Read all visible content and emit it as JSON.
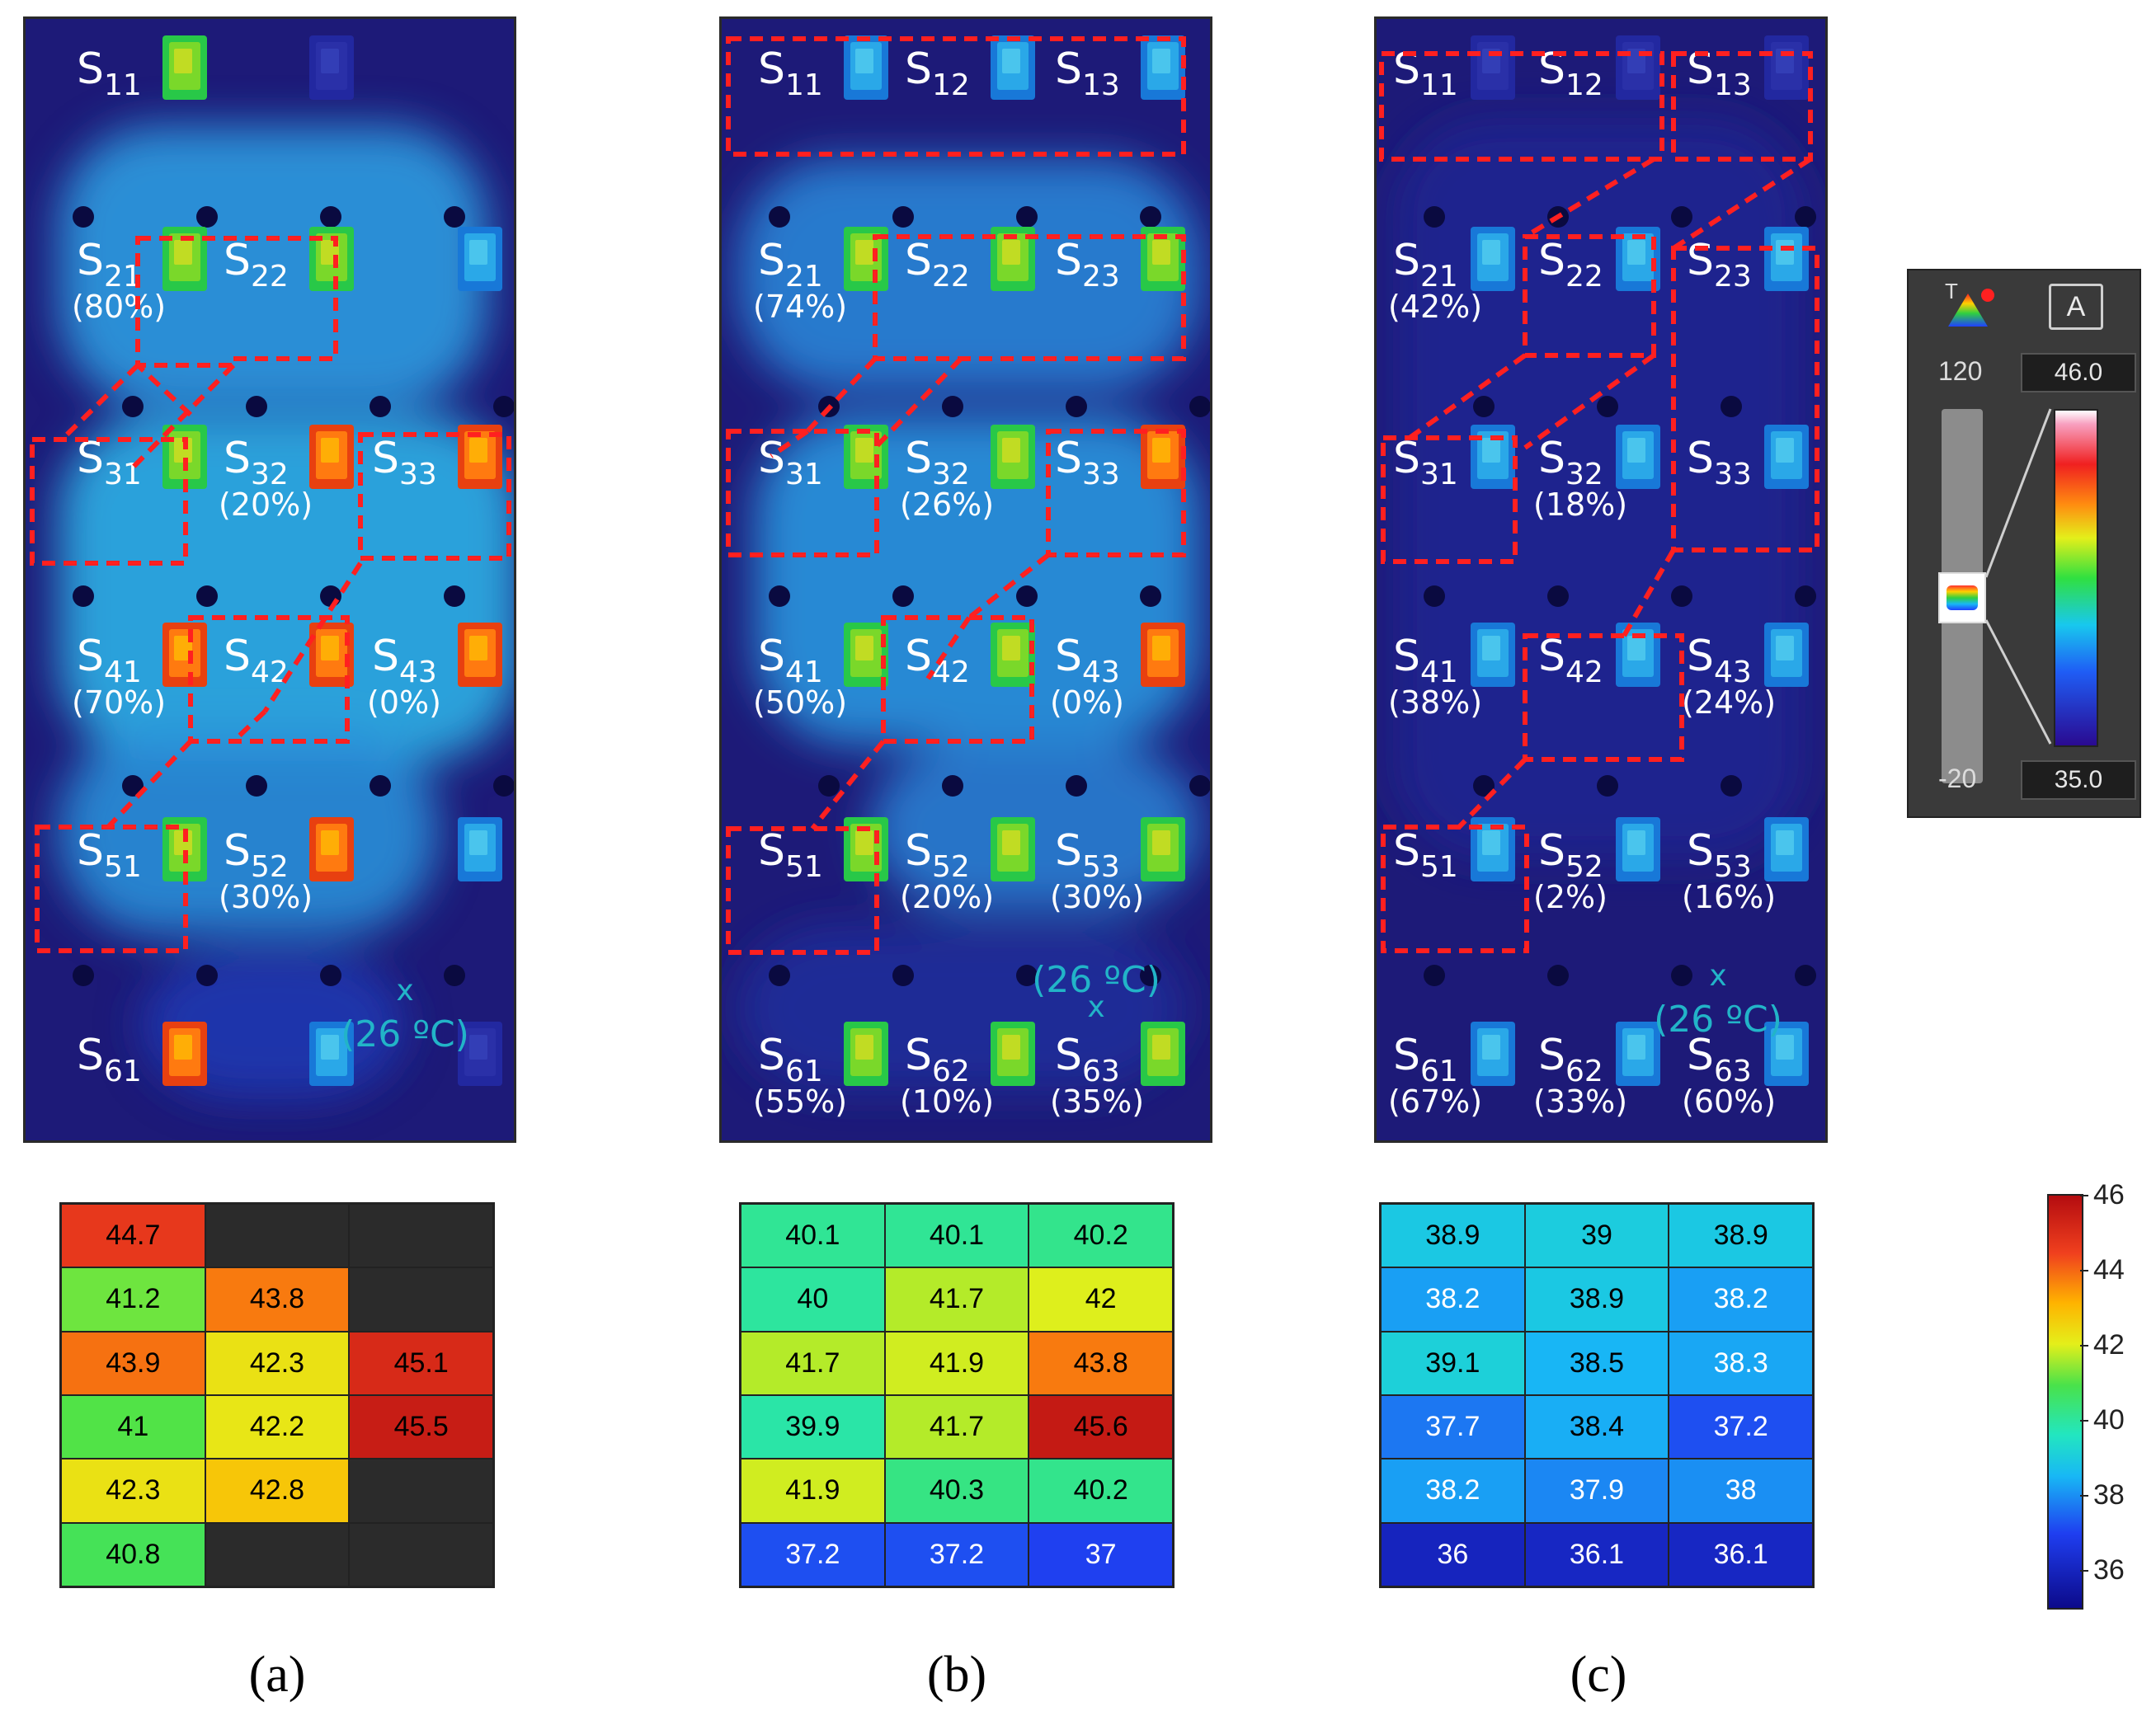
{
  "panels": [
    {
      "id": "a",
      "label": "(a)",
      "ambient_marker": "x",
      "ambient_text": "(26 ºC)",
      "sensors": [
        {
          "name": "S",
          "sub": "61",
          "pct": "",
          "hot": "hot"
        },
        {
          "name": "",
          "sub": "",
          "pct": "",
          "hot": "cool"
        },
        {
          "name": "",
          "sub": "",
          "pct": "",
          "hot": "dark"
        },
        {
          "name": "S",
          "sub": "51",
          "pct": "",
          "hot": "warm"
        },
        {
          "name": "S",
          "sub": "52",
          "pct": "(30%)",
          "hot": "hot"
        },
        {
          "name": "",
          "sub": "",
          "pct": "",
          "hot": "cool"
        },
        {
          "name": "S",
          "sub": "41",
          "pct": "(70%)",
          "hot": "hot"
        },
        {
          "name": "S",
          "sub": "42",
          "pct": "",
          "hot": "hot"
        },
        {
          "name": "S",
          "sub": "43",
          "pct": "(0%)",
          "hot": "hot"
        },
        {
          "name": "S",
          "sub": "31",
          "pct": "",
          "hot": "warm"
        },
        {
          "name": "S",
          "sub": "32",
          "pct": "(20%)",
          "hot": "hot"
        },
        {
          "name": "S",
          "sub": "33",
          "pct": "",
          "hot": "hot"
        },
        {
          "name": "S",
          "sub": "21",
          "pct": "(80%)",
          "hot": "warm"
        },
        {
          "name": "S",
          "sub": "22",
          "pct": "",
          "hot": "warm"
        },
        {
          "name": "",
          "sub": "",
          "pct": "",
          "hot": "cool"
        },
        {
          "name": "S",
          "sub": "11",
          "pct": "",
          "hot": "warm"
        },
        {
          "name": "",
          "sub": "",
          "pct": "",
          "hot": "dark"
        },
        {
          "name": "",
          "sub": "",
          "pct": "",
          "hot": "none"
        }
      ],
      "grid": [
        [
          "44.7",
          "",
          ""
        ],
        [
          "41.2",
          "43.8",
          ""
        ],
        [
          "43.9",
          "42.3",
          "45.1"
        ],
        [
          "41",
          "42.2",
          "45.5"
        ],
        [
          "42.3",
          "42.8",
          ""
        ],
        [
          "40.8",
          "",
          ""
        ]
      ]
    },
    {
      "id": "b",
      "label": "(b)",
      "ambient_marker": "x",
      "ambient_text": "(26 ºC)",
      "sensors": [
        {
          "name": "S",
          "sub": "61",
          "pct": "(55%)",
          "hot": "warm"
        },
        {
          "name": "S",
          "sub": "62",
          "pct": "(10%)",
          "hot": "warm"
        },
        {
          "name": "S",
          "sub": "63",
          "pct": "(35%)",
          "hot": "warm"
        },
        {
          "name": "S",
          "sub": "51",
          "pct": "",
          "hot": "warm"
        },
        {
          "name": "S",
          "sub": "52",
          "pct": "(20%)",
          "hot": "warm"
        },
        {
          "name": "S",
          "sub": "53",
          "pct": "(30%)",
          "hot": "warm"
        },
        {
          "name": "S",
          "sub": "41",
          "pct": "(50%)",
          "hot": "warm"
        },
        {
          "name": "S",
          "sub": "42",
          "pct": "",
          "hot": "warm"
        },
        {
          "name": "S",
          "sub": "43",
          "pct": "(0%)",
          "hot": "hot"
        },
        {
          "name": "S",
          "sub": "31",
          "pct": "",
          "hot": "warm"
        },
        {
          "name": "S",
          "sub": "32",
          "pct": "(26%)",
          "hot": "warm"
        },
        {
          "name": "S",
          "sub": "33",
          "pct": "",
          "hot": "hot"
        },
        {
          "name": "S",
          "sub": "21",
          "pct": "(74%)",
          "hot": "warm"
        },
        {
          "name": "S",
          "sub": "22",
          "pct": "",
          "hot": "warm"
        },
        {
          "name": "S",
          "sub": "23",
          "pct": "",
          "hot": "warm"
        },
        {
          "name": "S",
          "sub": "11",
          "pct": "",
          "hot": "cool"
        },
        {
          "name": "S",
          "sub": "12",
          "pct": "",
          "hot": "cool"
        },
        {
          "name": "S",
          "sub": "13",
          "pct": "",
          "hot": "cool"
        }
      ],
      "grid": [
        [
          "40.1",
          "40.1",
          "40.2"
        ],
        [
          "40",
          "41.7",
          "42"
        ],
        [
          "41.7",
          "41.9",
          "43.8"
        ],
        [
          "39.9",
          "41.7",
          "45.6"
        ],
        [
          "41.9",
          "40.3",
          "40.2"
        ],
        [
          "37.2",
          "37.2",
          "37"
        ]
      ]
    },
    {
      "id": "c",
      "label": "(c)",
      "ambient_marker": "x",
      "ambient_text": "(26 ºC)",
      "sensors": [
        {
          "name": "S",
          "sub": "61",
          "pct": "(67%)",
          "hot": "cool"
        },
        {
          "name": "S",
          "sub": "62",
          "pct": "(33%)",
          "hot": "cool"
        },
        {
          "name": "S",
          "sub": "63",
          "pct": "(60%)",
          "hot": "cool"
        },
        {
          "name": "S",
          "sub": "51",
          "pct": "",
          "hot": "cool"
        },
        {
          "name": "S",
          "sub": "52",
          "pct": "(2%)",
          "hot": "cool"
        },
        {
          "name": "S",
          "sub": "53",
          "pct": "(16%)",
          "hot": "cool"
        },
        {
          "name": "S",
          "sub": "41",
          "pct": "(38%)",
          "hot": "cool"
        },
        {
          "name": "S",
          "sub": "42",
          "pct": "",
          "hot": "cool"
        },
        {
          "name": "S",
          "sub": "43",
          "pct": "(24%)",
          "hot": "cool"
        },
        {
          "name": "S",
          "sub": "31",
          "pct": "",
          "hot": "cool"
        },
        {
          "name": "S",
          "sub": "32",
          "pct": "(18%)",
          "hot": "cool"
        },
        {
          "name": "S",
          "sub": "33",
          "pct": "",
          "hot": "cool"
        },
        {
          "name": "S",
          "sub": "21",
          "pct": "(42%)",
          "hot": "cool"
        },
        {
          "name": "S",
          "sub": "22",
          "pct": "",
          "hot": "cool"
        },
        {
          "name": "S",
          "sub": "23",
          "pct": "",
          "hot": "cool"
        },
        {
          "name": "S",
          "sub": "11",
          "pct": "",
          "hot": "dark"
        },
        {
          "name": "S",
          "sub": "12",
          "pct": "",
          "hot": "dark"
        },
        {
          "name": "S",
          "sub": "13",
          "pct": "",
          "hot": "dark"
        }
      ],
      "grid": [
        [
          "38.9",
          "39",
          "38.9"
        ],
        [
          "38.2",
          "38.9",
          "38.2"
        ],
        [
          "39.1",
          "38.5",
          "38.3"
        ],
        [
          "37.7",
          "38.4",
          "37.2"
        ],
        [
          "38.2",
          "37.9",
          "38"
        ],
        [
          "36",
          "36.1",
          "36.1"
        ]
      ]
    }
  ],
  "camera_legend": {
    "t_label": "T",
    "mode_button": "A",
    "range_high": "120",
    "range_low": "-20",
    "span_high": "46.0",
    "span_low": "35.0"
  },
  "colorbar": {
    "min": 35,
    "max": 46,
    "ticks": [
      "36",
      "38",
      "40",
      "42",
      "44",
      "46"
    ],
    "tick_values": [
      36,
      38,
      40,
      42,
      44,
      46
    ]
  },
  "colors": {
    "background_ir": "#1d1a78",
    "dash": "#ff2020",
    "label_text": "#ffffff",
    "ambient_text": "#22b4c8"
  }
}
